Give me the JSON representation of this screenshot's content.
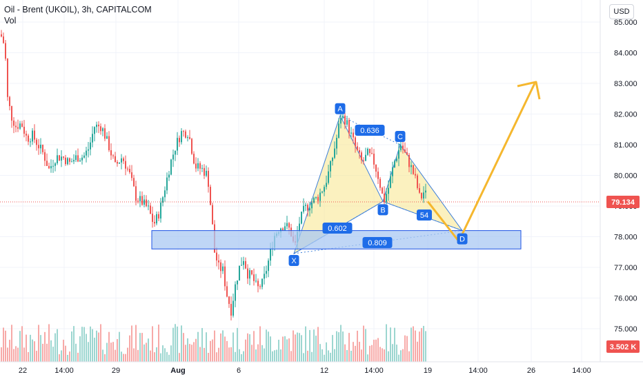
{
  "header": {
    "title": "Oil - Brent (UKOIL), 3h, CAPITALCOM",
    "subtitle": "Vol"
  },
  "currency_button": "USD",
  "colors": {
    "up": "#26a69a",
    "down": "#ef5350",
    "up_vol": "#9cd6d0",
    "down_vol": "#f7a9a7",
    "pattern_fill": "#f7e58a",
    "pattern_line": "#3d7fd9",
    "zone_fill": "#a9c8f3",
    "zone_stroke": "#1e53e5",
    "arrow": "#f5b72e",
    "label_bg": "#1e6ce8",
    "price_tag": "#ef5350"
  },
  "chart_data": {
    "type": "candlestick",
    "title": "Oil - Brent (UKOIL), 3h, CAPITALCOM",
    "ylim": [
      74.6,
      85.0
    ],
    "y_ticks": [
      "85.000",
      "84.000",
      "83.000",
      "82.000",
      "81.000",
      "80.000",
      "79.000",
      "78.000",
      "77.000",
      "76.000",
      "75.000"
    ],
    "x_ticks": [
      "22",
      "14:00",
      "29",
      "Aug",
      "6",
      "12",
      "14:00",
      "19",
      "14:00",
      "26",
      "14:00"
    ],
    "current_price": "79.134",
    "volume_tag": "3.502 K",
    "path": [
      [
        0,
        84.6
      ],
      [
        6,
        84.2
      ],
      [
        10,
        82.5
      ],
      [
        16,
        81.9
      ],
      [
        22,
        81.6
      ],
      [
        30,
        81.7
      ],
      [
        38,
        81.2
      ],
      [
        46,
        81.3
      ],
      [
        54,
        81.0
      ],
      [
        62,
        80.7
      ],
      [
        70,
        80.2
      ],
      [
        80,
        80.6
      ],
      [
        90,
        80.6
      ],
      [
        100,
        80.4
      ],
      [
        110,
        80.6
      ],
      [
        120,
        80.6
      ],
      [
        128,
        80.9
      ],
      [
        136,
        81.6
      ],
      [
        146,
        81.6
      ],
      [
        156,
        81.0
      ],
      [
        166,
        80.3
      ],
      [
        176,
        80.6
      ],
      [
        186,
        80.1
      ],
      [
        196,
        79.3
      ],
      [
        206,
        79.1
      ],
      [
        214,
        78.9
      ],
      [
        222,
        78.4
      ],
      [
        230,
        78.8
      ],
      [
        238,
        79.6
      ],
      [
        246,
        80.4
      ],
      [
        254,
        81.0
      ],
      [
        262,
        81.4
      ],
      [
        272,
        81.4
      ],
      [
        282,
        80.3
      ],
      [
        292,
        80.2
      ],
      [
        300,
        80.0
      ],
      [
        306,
        78.6
      ],
      [
        310,
        77.5
      ],
      [
        316,
        77.0
      ],
      [
        322,
        76.9
      ],
      [
        328,
        76.1
      ],
      [
        334,
        75.6
      ],
      [
        340,
        76.4
      ],
      [
        346,
        77.0
      ],
      [
        352,
        77.3
      ],
      [
        358,
        76.8
      ],
      [
        364,
        76.7
      ],
      [
        372,
        76.3
      ],
      [
        380,
        76.5
      ],
      [
        388,
        77.2
      ],
      [
        396,
        78.0
      ],
      [
        404,
        78.3
      ],
      [
        412,
        78.4
      ],
      [
        420,
        78.2
      ],
      [
        426,
        77.6
      ],
      [
        432,
        78.4
      ],
      [
        440,
        78.9
      ],
      [
        450,
        79.1
      ],
      [
        460,
        79.3
      ],
      [
        470,
        79.7
      ],
      [
        478,
        80.3
      ],
      [
        486,
        81.1
      ],
      [
        493,
        81.95
      ],
      [
        500,
        81.8
      ],
      [
        508,
        81.3
      ],
      [
        516,
        80.8
      ],
      [
        524,
        80.4
      ],
      [
        532,
        80.7
      ],
      [
        540,
        80.5
      ],
      [
        548,
        79.9
      ],
      [
        555,
        79.15
      ],
      [
        562,
        79.6
      ],
      [
        570,
        80.4
      ],
      [
        580,
        81.0
      ],
      [
        588,
        80.6
      ],
      [
        596,
        80.2
      ],
      [
        602,
        79.8
      ],
      [
        608,
        79.2
      ],
      [
        614,
        79.5
      ],
      [
        620,
        79.15
      ]
    ],
    "harmonic_points": [
      {
        "label": "X",
        "x_idx": 426,
        "y": 77.45
      },
      {
        "label": "A",
        "x_idx": 493,
        "y": 81.95
      },
      {
        "label": "B",
        "x_idx": 555,
        "y": 79.15
      },
      {
        "label": "C",
        "x_idx": 580,
        "y": 81.0
      },
      {
        "label": "D",
        "x_idx": 670,
        "y": 78.2
      }
    ],
    "ratios": [
      {
        "text": "0.636"
      },
      {
        "text": "0.602"
      },
      {
        "text": "0.809"
      },
      {
        "text": "54"
      }
    ],
    "demand_zone": {
      "low": 77.6,
      "high": 78.2
    },
    "projection": {
      "low": 77.85,
      "target": 83.0
    },
    "volume": []
  }
}
